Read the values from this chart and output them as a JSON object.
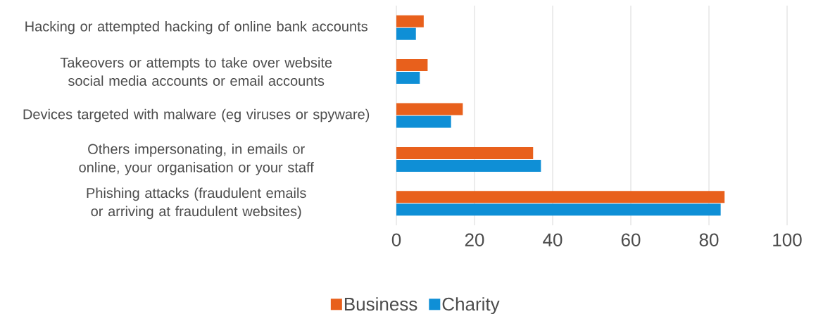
{
  "chart_data": {
    "type": "bar",
    "orientation": "horizontal",
    "categories": [
      "Hacking or attempted hacking of online bank accounts",
      "Takeovers or attempts to take over website social media accounts or email accounts",
      "Devices targeted with malware (eg viruses or spyware)",
      "Others impersonating, in emails or online, your organisation or your staff",
      "Phishing attacks (fraudulent emails or arriving at fraudulent websites)"
    ],
    "series": [
      {
        "name": "Business",
        "color": "#e8601c",
        "values": [
          7,
          8,
          17,
          35,
          84
        ]
      },
      {
        "name": "Charity",
        "color": "#0f8fd6",
        "values": [
          5,
          6,
          14,
          37,
          83
        ]
      }
    ],
    "xlim": [
      0,
      100
    ],
    "xticks": [
      0,
      20,
      40,
      60,
      80,
      100
    ],
    "grid": "x",
    "legend": "bottom"
  }
}
